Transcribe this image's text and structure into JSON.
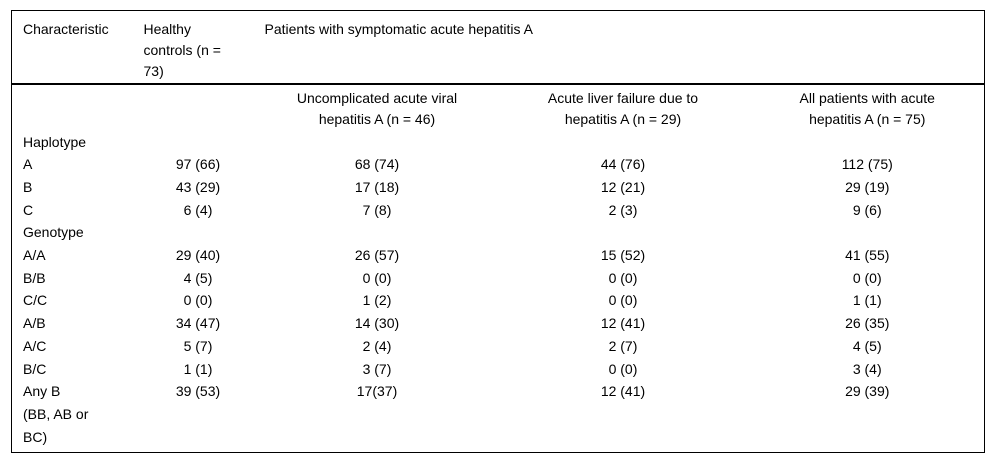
{
  "colors": {
    "background": "#ffffff",
    "text": "#000000",
    "border": "#000000"
  },
  "table": {
    "header": {
      "characteristic": "Characteristic",
      "healthy_controls": "Healthy\ncontrols (n =\n73)",
      "patients_group": "Patients with symptomatic acute hepatitis A",
      "subheaders": [
        "Uncomplicated acute viral\nhepatitis A (n = 46)",
        "Acute liver failure due to\nhepatitis A (n = 29)",
        "All patients with acute\nhepatitis A (n = 75)"
      ]
    },
    "rows": [
      {
        "label": "Haplotype",
        "section": true,
        "values": [
          "",
          "",
          "",
          ""
        ]
      },
      {
        "label": "A",
        "section": false,
        "values": [
          "97 (66)",
          "68 (74)",
          "44 (76)",
          "112 (75)"
        ]
      },
      {
        "label": "B",
        "section": false,
        "values": [
          "43 (29)",
          "17 (18)",
          "12 (21)",
          "29 (19)"
        ]
      },
      {
        "label": "C",
        "section": false,
        "values": [
          "6 (4)",
          "7 (8)",
          "2 (3)",
          "9 (6)"
        ]
      },
      {
        "label": "Genotype",
        "section": true,
        "values": [
          "",
          "",
          "",
          ""
        ]
      },
      {
        "label": "A/A",
        "section": false,
        "values": [
          "29 (40)",
          "26 (57)",
          "15 (52)",
          "41 (55)"
        ]
      },
      {
        "label": "B/B",
        "section": false,
        "values": [
          "4 (5)",
          "0 (0)",
          "0 (0)",
          "0 (0)"
        ]
      },
      {
        "label": "C/C",
        "section": false,
        "values": [
          "0 (0)",
          "1 (2)",
          "0 (0)",
          "1 (1)"
        ]
      },
      {
        "label": "A/B",
        "section": false,
        "values": [
          "34 (47)",
          "14 (30)",
          "12 (41)",
          "26 (35)"
        ]
      },
      {
        "label": "A/C",
        "section": false,
        "values": [
          "5 (7)",
          "2 (4)",
          "2 (7)",
          "4 (5)"
        ]
      },
      {
        "label": "B/C",
        "section": false,
        "values": [
          "1 (1)",
          "3 (7)",
          "0 (0)",
          "3 (4)"
        ]
      },
      {
        "label": "Any B\n(BB, AB or\nBC)",
        "section": false,
        "values": [
          "39 (53)",
          "17(37)",
          "12 (41)",
          "29 (39)"
        ]
      }
    ]
  }
}
